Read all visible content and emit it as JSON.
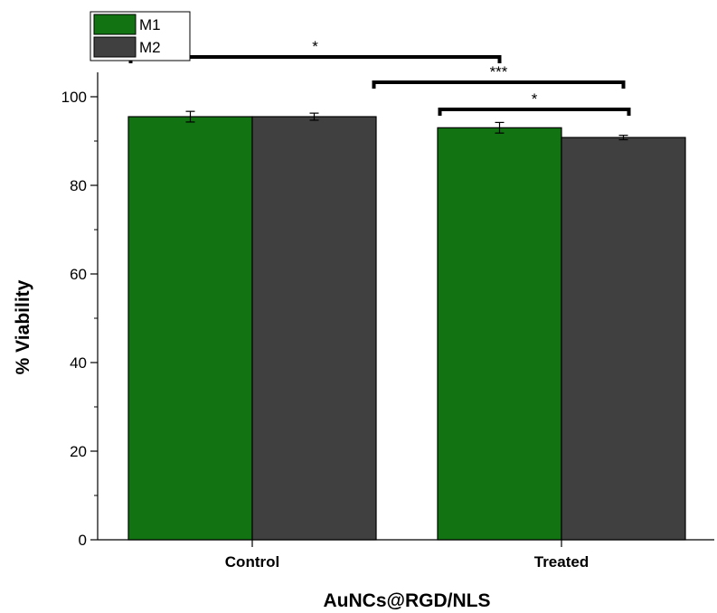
{
  "chart_data": {
    "type": "bar",
    "title": "",
    "xlabel": "AuNCs@RGD/NLS",
    "ylabel": "% Viability",
    "categories": [
      "Control",
      "Treated"
    ],
    "ylim": [
      0,
      100
    ],
    "yticks": [
      0,
      20,
      40,
      60,
      80,
      100
    ],
    "yticks_minor": [
      10,
      30,
      50,
      70,
      90
    ],
    "grid": false,
    "legend": "top-left",
    "series": [
      {
        "name": "M1",
        "color": "#127312",
        "values": [
          95.5,
          93.0
        ],
        "errors": [
          1.2,
          1.2
        ]
      },
      {
        "name": "M2",
        "color": "#404040",
        "values": [
          95.5,
          90.8
        ],
        "errors": [
          0.8,
          0.5
        ]
      }
    ],
    "significance": [
      {
        "from": [
          0,
          0
        ],
        "to": [
          1,
          0
        ],
        "label": "*"
      },
      {
        "from": [
          0,
          1
        ],
        "to": [
          1,
          1
        ],
        "label": "***"
      },
      {
        "from": [
          1,
          0
        ],
        "to": [
          1,
          1
        ],
        "label": "*"
      }
    ]
  }
}
